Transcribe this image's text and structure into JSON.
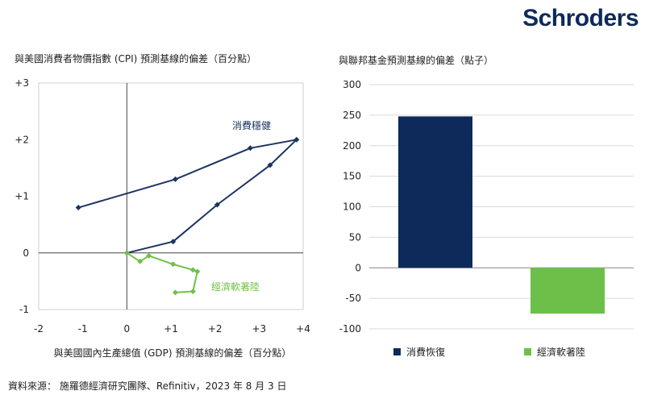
{
  "brand": "Schroders",
  "source": "資料來源： 施羅德經濟研究團隊、Refinitiv，2023 年 8 月 3 日",
  "colors": {
    "navy": "#1c3461",
    "green": "#70c048",
    "bar_navy": "#0e2a5b",
    "bar_green": "#6cc04a"
  },
  "chart_data": [
    {
      "type": "scatter",
      "title": "與美國消費者物價指數 (CPI) 預測基線的偏差（百分點）",
      "xlabel": "與美國國內生產總值 (GDP) 預測基線的偏差（百分點）",
      "ylabel": "",
      "xlim": [
        -2,
        4
      ],
      "ylim": [
        -1,
        3
      ],
      "x_ticks": [
        "-2",
        "-1",
        "0",
        "+1",
        "+2",
        "+3",
        "+4"
      ],
      "y_ticks": [
        "-1",
        "0",
        "+1",
        "+2",
        "+3"
      ],
      "grid": false,
      "series": [
        {
          "name": "消費穩健",
          "color": "#1c3461",
          "points": [
            [
              0,
              0
            ],
            [
              1.05,
              0.2
            ],
            [
              2.05,
              0.85
            ],
            [
              3.25,
              1.55
            ],
            [
              3.85,
              2.0
            ],
            [
              2.8,
              1.85
            ],
            [
              1.1,
              1.3
            ],
            [
              -1.1,
              0.8
            ]
          ]
        },
        {
          "name": "經濟軟著陸",
          "color": "#70c048",
          "points": [
            [
              0,
              0
            ],
            [
              0.3,
              -0.15
            ],
            [
              0.5,
              -0.05
            ],
            [
              1.05,
              -0.2
            ],
            [
              1.5,
              -0.3
            ],
            [
              1.6,
              -0.33
            ],
            [
              1.5,
              -0.68
            ],
            [
              1.1,
              -0.7
            ]
          ]
        }
      ]
    },
    {
      "type": "bar",
      "title": "與聯邦基金預測基線的偏差（點子）",
      "categories": [
        "消費恢復",
        "經濟軟著陸"
      ],
      "values": [
        248,
        -75
      ],
      "colors": [
        "#0e2a5b",
        "#6cc04a"
      ],
      "ylim": [
        -100,
        300
      ],
      "y_ticks": [
        "300",
        "250",
        "200",
        "150",
        "100",
        "50",
        "0",
        "-50",
        "-100"
      ],
      "grid": true,
      "legend": "bottom"
    }
  ]
}
